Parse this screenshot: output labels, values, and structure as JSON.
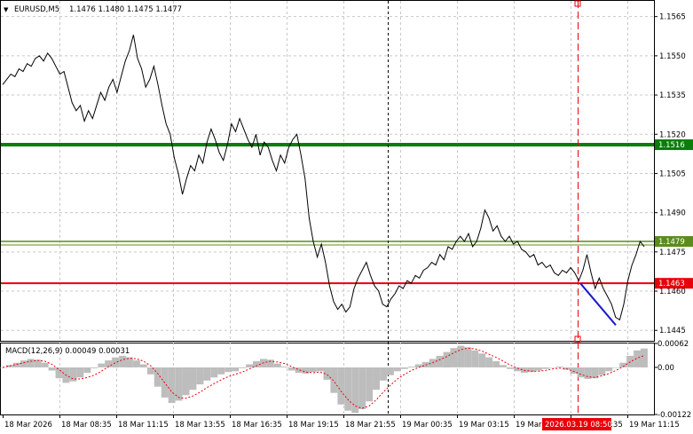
{
  "header": {
    "menu_glyph": "▼",
    "symbol": "EURUSD,M5",
    "ohlc": "1.1476 1.1480 1.1475 1.1477"
  },
  "price_axis": {
    "ticks": [
      "1.1565",
      "1.1550",
      "1.1535",
      "1.1520",
      "1.1505",
      "1.1490",
      "1.1475",
      "1.1460",
      "1.1445"
    ]
  },
  "levels": [
    {
      "price": 1.1516,
      "label": "1.1516",
      "color": "#0a7d0a"
    },
    {
      "price": 1.1479,
      "label": "1.1479",
      "color": "#5a8c1e"
    },
    {
      "price": 1.1463,
      "label": "1.1463",
      "color": "#e8000a"
    }
  ],
  "macd": {
    "label": "MACD(12,26,9) 0.00049 0.00031",
    "ticks": [
      "0.00062",
      "0.00",
      "-0.00122"
    ]
  },
  "time_axis": {
    "labels": [
      "18 Mar 2026",
      "18 Mar 08:35",
      "18 Mar 11:15",
      "18 Mar 13:55",
      "18 Mar 16:35",
      "18 Mar 19:15",
      "18 Mar 21:55",
      "19 Mar 00:35",
      "19 Mar 03:15",
      "19 Mar 05:55",
      "19 Mar 08:35",
      "19 Mar 11:15"
    ],
    "cursor_label": "2026.03.19 08:50"
  },
  "colors": {
    "price_line": "#000000",
    "grid": "#c8c8c8",
    "trend_line": "#1a1acc",
    "cursor_line": "#e8000a",
    "macd_histogram": "#bdbdbd",
    "macd_signal": "#e8000a"
  },
  "chart_data": {
    "type": "line",
    "series": [
      {
        "values": [
          1.1539,
          1.1541,
          1.1543,
          1.1542,
          1.1545,
          1.1544,
          1.1547,
          1.1546,
          1.1549,
          1.155,
          1.1548,
          1.1551,
          1.1549,
          1.1546,
          1.1543,
          1.1544,
          1.1538,
          1.1532,
          1.1529,
          1.1531,
          1.1525,
          1.1529,
          1.1526,
          1.1531,
          1.1536,
          1.1533,
          1.1538,
          1.1541,
          1.1536,
          1.1542,
          1.1548,
          1.1552,
          1.1558,
          1.1549,
          1.1545,
          1.1538,
          1.1541,
          1.1546,
          1.1539,
          1.1531,
          1.1524,
          1.152,
          1.1511,
          1.1505,
          1.1497,
          1.1503,
          1.1508,
          1.1506,
          1.1512,
          1.1509,
          1.1517,
          1.1522,
          1.1518,
          1.1513,
          1.151,
          1.1516,
          1.1524,
          1.1521,
          1.1526,
          1.1522,
          1.1518,
          1.1515,
          1.152,
          1.1512,
          1.1517,
          1.1515,
          1.151,
          1.1506,
          1.1512,
          1.1509,
          1.1515,
          1.1518,
          1.152,
          1.1512,
          1.1503,
          1.1488,
          1.1479,
          1.1473,
          1.1478,
          1.1471,
          1.1462,
          1.1456,
          1.1453,
          1.1455,
          1.1452,
          1.1454,
          1.1461,
          1.1465,
          1.1468,
          1.1471,
          1.1466,
          1.1462,
          1.146,
          1.1455,
          1.1454,
          1.1457,
          1.1459,
          1.1462,
          1.1461,
          1.1464,
          1.1463,
          1.1466,
          1.1465,
          1.1468,
          1.1469,
          1.1471,
          1.147,
          1.1474,
          1.1472,
          1.1477,
          1.1476,
          1.1479,
          1.1481,
          1.1479,
          1.1482,
          1.1477,
          1.1479,
          1.1484,
          1.1491,
          1.1488,
          1.1483,
          1.1485,
          1.1481,
          1.1479,
          1.1481,
          1.1478,
          1.1479,
          1.1476,
          1.1475,
          1.1473,
          1.1474,
          1.147,
          1.1471,
          1.1469,
          1.147,
          1.1467,
          1.1466,
          1.1468,
          1.1467,
          1.1469,
          1.1467,
          1.1464,
          1.1468,
          1.1474,
          1.1467,
          1.1461,
          1.1465,
          1.1461,
          1.1458,
          1.1455,
          1.145,
          1.1449,
          1.1455,
          1.1464,
          1.147,
          1.1474,
          1.1479,
          1.1477
        ],
        "color": "#000000"
      }
    ],
    "trend_segment": {
      "start_price": 1.1463,
      "end_price": 1.1447
    },
    "macd": {
      "histogram": [
        0.0,
        6e-05,
        0.00012,
        0.00018,
        0.00022,
        0.0002,
        0.00012,
        -8e-05,
        -0.00028,
        -0.0004,
        -0.00036,
        -0.00026,
        -0.00014,
        -2e-05,
        0.0001,
        0.00018,
        0.00026,
        0.0003,
        0.00026,
        0.00018,
        8e-05,
        -0.00018,
        -0.0005,
        -0.00078,
        -0.00092,
        -0.00086,
        -0.00072,
        -0.00058,
        -0.00044,
        -0.00034,
        -0.00026,
        -0.00018,
        -0.00012,
        -0.0001,
        -2e-05,
        8e-05,
        0.00016,
        0.00022,
        0.0002,
        0.0001,
        2e-05,
        -8e-05,
        -0.00014,
        -0.00016,
        -0.00012,
        -0.0001,
        -0.00032,
        -0.00066,
        -0.00096,
        -0.00112,
        -0.00118,
        -0.00108,
        -0.00088,
        -0.00058,
        -0.00034,
        -0.0002,
        -0.0001,
        -4e-05,
        2e-05,
        8e-05,
        0.00014,
        0.00022,
        0.0003,
        0.0004,
        0.0005,
        0.00056,
        0.00052,
        0.00044,
        0.00036,
        0.00026,
        0.00016,
        6e-05,
        -4e-05,
        -0.0001,
        -0.00014,
        -0.00012,
        -8e-05,
        -4e-05,
        0.0,
        2e-05,
        -6e-05,
        -0.00016,
        -0.00026,
        -0.0003,
        -0.00028,
        -0.0002,
        -0.0001,
        0.0,
        0.00012,
        0.0003,
        0.00044,
        0.00049
      ],
      "signal": [
        0.0,
        4e-05,
        8e-05,
        0.00012,
        0.00016,
        0.00018,
        0.00016,
        8e-05,
        -6e-05,
        -0.0002,
        -0.0003,
        -0.0003,
        -0.00026,
        -0.0002,
        -0.0001,
        2e-05,
        0.00012,
        0.0002,
        0.00024,
        0.00022,
        0.00016,
        4e-05,
        -0.00016,
        -0.0004,
        -0.00064,
        -0.00078,
        -0.0008,
        -0.00074,
        -0.00064,
        -0.00052,
        -0.00042,
        -0.00032,
        -0.00024,
        -0.00018,
        -0.00012,
        -4e-05,
        4e-05,
        0.00012,
        0.00016,
        0.00014,
        0.0001,
        2e-05,
        -6e-05,
        -0.00012,
        -0.00014,
        -0.00012,
        -0.00018,
        -0.00036,
        -0.00062,
        -0.00084,
        -0.001,
        -0.00106,
        -0.001,
        -0.00084,
        -0.00064,
        -0.00046,
        -0.0003,
        -0.00018,
        -8e-05,
        0.0,
        6e-05,
        0.00012,
        0.0002,
        0.00028,
        0.00038,
        0.00046,
        0.0005,
        0.00048,
        0.00042,
        0.00034,
        0.00026,
        0.00016,
        6e-05,
        -2e-05,
        -8e-05,
        -0.0001,
        -0.0001,
        -8e-05,
        -4e-05,
        -2e-05,
        -4e-05,
        -0.0001,
        -0.00018,
        -0.00024,
        -0.00026,
        -0.00022,
        -0.00016,
        -8e-05,
        2e-05,
        0.00014,
        0.00024,
        0.00031
      ]
    },
    "y_range": [
      1.1441,
      1.1571
    ],
    "macd_range": [
      -0.00122,
      0.00062
    ]
  }
}
